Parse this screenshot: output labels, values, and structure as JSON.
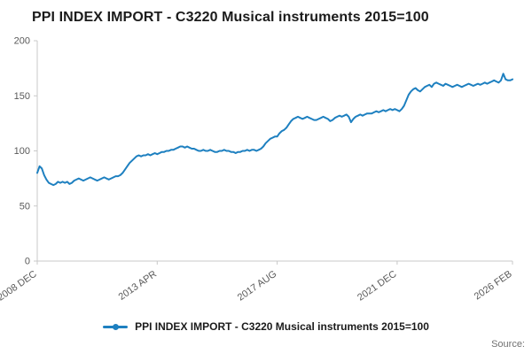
{
  "title": "PPI INDEX IMPORT - C3220 Musical instruments 2015=100",
  "source_label": "Source:",
  "legend": {
    "label": "PPI INDEX IMPORT - C3220 Musical instruments 2015=100"
  },
  "colors": {
    "line": "#1e80c0",
    "axis": "#c8c8c8",
    "tick_text": "#595959",
    "title_text": "#1b1b1b"
  },
  "chart_data": {
    "type": "line",
    "title": "PPI INDEX IMPORT - C3220 Musical instruments 2015=100",
    "xlabel": "",
    "ylabel": "",
    "x_unit": "month",
    "x_start": "2008 DEC",
    "x_end": "2026 FEB",
    "x_tick_labels": [
      "2008 DEC",
      "2013 APR",
      "2017 AUG",
      "2021 DEC",
      "2026 FEB"
    ],
    "x_tick_positions": [
      0,
      52,
      104,
      156,
      206
    ],
    "y_ticks": [
      0,
      50,
      100,
      150,
      200
    ],
    "ylim": [
      0,
      200
    ],
    "grid": false,
    "legend_position": "bottom",
    "values": [
      80,
      86,
      84,
      78,
      74,
      71,
      70,
      69,
      70,
      72,
      71,
      72,
      71,
      72,
      70,
      71,
      73,
      74,
      75,
      74,
      73,
      74,
      75,
      76,
      75,
      74,
      73,
      74,
      75,
      76,
      75,
      74,
      75,
      76,
      77,
      77,
      78,
      80,
      83,
      86,
      89,
      91,
      93,
      95,
      96,
      95,
      96,
      96,
      97,
      96,
      97,
      98,
      97,
      98,
      99,
      99,
      100,
      100,
      101,
      101,
      102,
      103,
      104,
      104,
      103,
      104,
      103,
      102,
      102,
      101,
      100,
      100,
      101,
      100,
      100,
      101,
      100,
      99,
      99,
      100,
      100,
      101,
      100,
      100,
      99,
      99,
      98,
      99,
      99,
      100,
      100,
      101,
      100,
      101,
      101,
      100,
      101,
      102,
      104,
      107,
      109,
      111,
      112,
      113,
      113,
      116,
      118,
      119,
      121,
      124,
      127,
      129,
      130,
      131,
      130,
      129,
      130,
      131,
      130,
      129,
      128,
      128,
      129,
      130,
      131,
      130,
      129,
      127,
      128,
      130,
      131,
      132,
      131,
      132,
      133,
      131,
      126,
      129,
      131,
      132,
      133,
      132,
      133,
      134,
      134,
      134,
      135,
      136,
      135,
      136,
      137,
      136,
      137,
      138,
      137,
      138,
      137,
      136,
      138,
      141,
      146,
      151,
      154,
      156,
      157,
      155,
      154,
      156,
      158,
      159,
      160,
      158,
      161,
      162,
      161,
      160,
      159,
      161,
      160,
      159,
      158,
      159,
      160,
      159,
      158,
      159,
      160,
      161,
      160,
      159,
      160,
      161,
      160,
      161,
      162,
      161,
      162,
      163,
      164,
      163,
      162,
      164,
      170,
      165,
      164,
      164,
      165
    ]
  }
}
